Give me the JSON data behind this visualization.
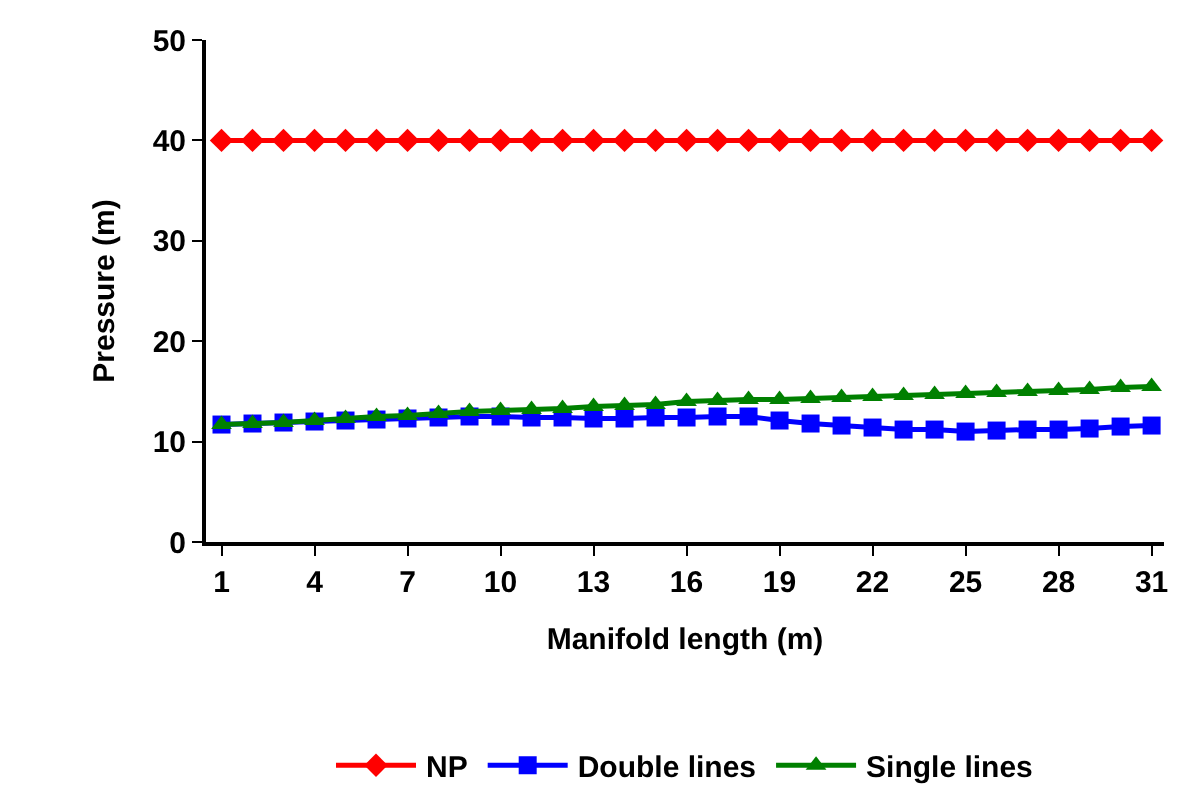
{
  "chart_data": {
    "type": "line",
    "xlabel": "Manifold length (m)",
    "ylabel": "Pressure (m)",
    "categories": [
      "1",
      null,
      null,
      "4",
      null,
      null,
      "7",
      null,
      null,
      "10",
      null,
      null,
      "13",
      null,
      null,
      "16",
      null,
      null,
      "19",
      null,
      null,
      "22",
      null,
      null,
      "25",
      null,
      null,
      "28",
      null,
      null,
      "31"
    ],
    "series": [
      {
        "name": "NP",
        "color": "#ff0000",
        "marker": "diamond",
        "values": [
          40,
          40,
          40,
          40,
          40,
          40,
          40,
          40,
          40,
          40,
          40,
          40,
          40,
          40,
          40,
          40,
          40,
          40,
          40,
          40,
          40,
          40,
          40,
          40,
          40,
          40,
          40,
          40,
          40,
          40,
          40
        ]
      },
      {
        "name": "Double lines",
        "color": "#0000ff",
        "marker": "square",
        "values": [
          11.7,
          11.8,
          11.9,
          12.0,
          12.1,
          12.2,
          12.3,
          12.4,
          12.5,
          12.5,
          12.4,
          12.4,
          12.3,
          12.3,
          12.4,
          12.4,
          12.5,
          12.5,
          12.1,
          11.8,
          11.6,
          11.4,
          11.2,
          11.2,
          11.0,
          11.1,
          11.2,
          11.2,
          11.3,
          11.5,
          11.6
        ]
      },
      {
        "name": "Single lines",
        "color": "#008000",
        "marker": "triangle",
        "values": [
          11.7,
          11.8,
          11.9,
          12.1,
          12.3,
          12.5,
          12.6,
          12.8,
          13.0,
          13.1,
          13.2,
          13.3,
          13.5,
          13.6,
          13.7,
          14.0,
          14.1,
          14.2,
          14.2,
          14.3,
          14.4,
          14.5,
          14.6,
          14.7,
          14.8,
          14.9,
          15.0,
          15.1,
          15.2,
          15.4,
          15.5
        ]
      }
    ],
    "ylim": [
      0,
      50
    ],
    "yticks": [
      0,
      10,
      20,
      30,
      40,
      50
    ],
    "legend": "bottom",
    "line_style": "solid"
  }
}
